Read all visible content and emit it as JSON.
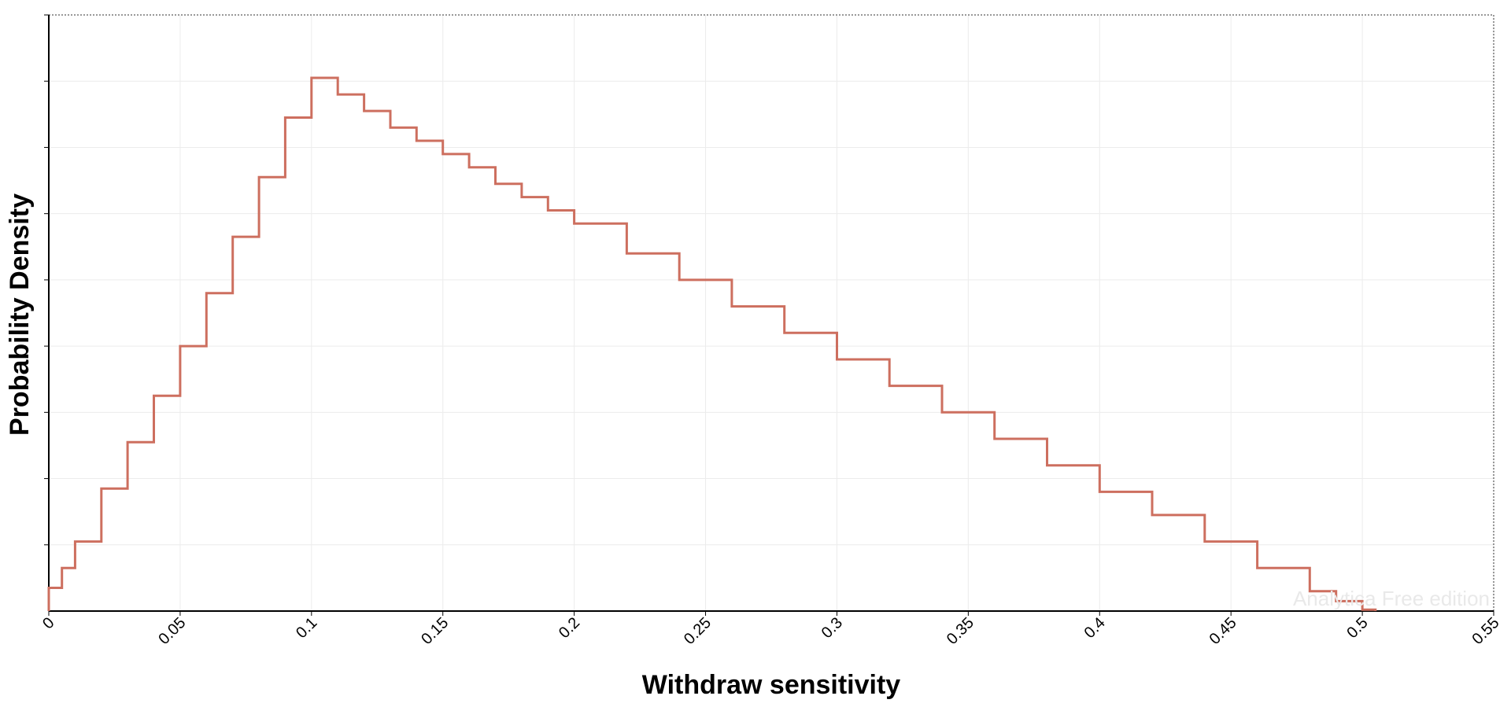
{
  "chart_data": {
    "type": "line",
    "title": "",
    "xlabel": "Withdraw sensitivity",
    "ylabel": "Probability Density",
    "xlim": [
      0,
      0.55
    ],
    "ylim": [
      0,
      9
    ],
    "x_ticks": [
      "0",
      "0.05",
      "0.1",
      "0.15",
      "0.2",
      "0.25",
      "0.3",
      "0.35",
      "0.4",
      "0.45",
      "0.5",
      "0.55"
    ],
    "y_ticks_labeled": false,
    "grid": true,
    "line_style": "step",
    "series": [
      {
        "color": "#cd6f5f",
        "x": [
          0,
          0.005,
          0.01,
          0.02,
          0.03,
          0.04,
          0.05,
          0.06,
          0.07,
          0.08,
          0.09,
          0.1,
          0.11,
          0.12,
          0.13,
          0.14,
          0.15,
          0.16,
          0.17,
          0.18,
          0.19,
          0.2,
          0.22,
          0.24,
          0.26,
          0.28,
          0.3,
          0.32,
          0.34,
          0.36,
          0.38,
          0.4,
          0.42,
          0.44,
          0.46,
          0.48,
          0.49,
          0.5,
          0.505
        ],
        "y": [
          0.35,
          0.65,
          1.05,
          1.85,
          2.55,
          3.25,
          4.0,
          4.8,
          5.65,
          6.55,
          7.45,
          8.05,
          7.8,
          7.55,
          7.3,
          7.1,
          6.9,
          6.7,
          6.45,
          6.25,
          6.05,
          5.85,
          5.4,
          5.0,
          4.6,
          4.2,
          3.8,
          3.4,
          3.0,
          2.6,
          2.2,
          1.8,
          1.45,
          1.05,
          0.65,
          0.3,
          0.15,
          0.02,
          0.0
        ]
      }
    ],
    "watermark": "Analytica Free edition"
  }
}
